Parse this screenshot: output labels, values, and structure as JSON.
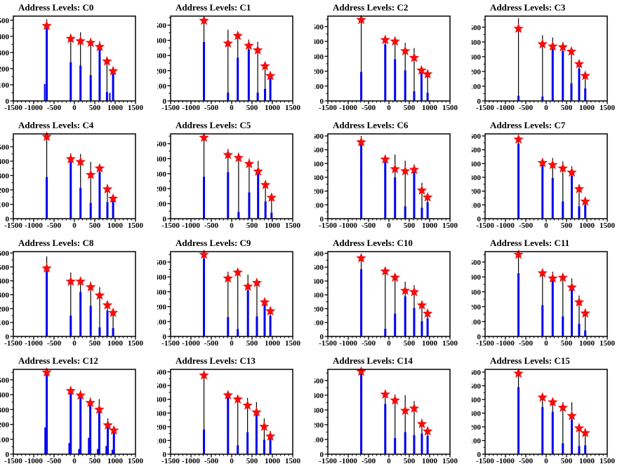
{
  "chart_data": {
    "type": "bar",
    "subtype": "multi-panel-histogram-with-star-markers",
    "layout": {
      "rows": 4,
      "cols": 4,
      "grid_on": false,
      "legend": "none"
    },
    "axes": {
      "xlim": [
        -1500,
        1500
      ],
      "xticks": [
        -1500,
        -1000,
        -500,
        0,
        500,
        1000,
        1500
      ],
      "ytick_step": 100,
      "xlabel": "",
      "ylabel": ""
    },
    "colors": {
      "bar": "#0000ee",
      "marker": "#f50d0d",
      "error_line": "#000000",
      "frame": "#000000",
      "text": "#000000",
      "background": "#ffffff"
    },
    "marker_style": "filled-5-point-star",
    "peak_format": "each peak: x = bin center, bar = blue histogram height, line = black error-line top, star = red marker y-value",
    "panels": [
      {
        "title": "Address Levels: C0",
        "ymax": 525,
        "peaks": [
          {
            "x": -680,
            "bar": 465,
            "line": 505,
            "star": 465
          },
          {
            "x": -90,
            "bar": 240,
            "line": 415,
            "star": 385
          },
          {
            "x": 150,
            "bar": 220,
            "line": 425,
            "star": 370
          },
          {
            "x": 400,
            "bar": 160,
            "line": 385,
            "star": 360
          },
          {
            "x": 620,
            "bar": 320,
            "line": 370,
            "star": 335
          },
          {
            "x": 800,
            "bar": 55,
            "line": 265,
            "star": 245
          },
          {
            "x": 950,
            "bar": 185,
            "line": 210,
            "star": 185
          }
        ],
        "subs": [
          {
            "x": -730,
            "bar": 105
          },
          {
            "x": 870,
            "bar": 50
          }
        ]
      },
      {
        "title": "Address Levels: C1",
        "ymax": 560,
        "peaks": [
          {
            "x": -680,
            "bar": 390,
            "line": 555,
            "star": 530
          },
          {
            "x": -90,
            "bar": 55,
            "line": 470,
            "star": 380
          },
          {
            "x": 150,
            "bar": 285,
            "line": 450,
            "star": 430
          },
          {
            "x": 420,
            "bar": 340,
            "line": 405,
            "star": 365
          },
          {
            "x": 640,
            "bar": 55,
            "line": 390,
            "star": 335
          },
          {
            "x": 820,
            "bar": 80,
            "line": 260,
            "star": 230
          },
          {
            "x": 950,
            "bar": 160,
            "line": 195,
            "star": 165
          }
        ],
        "subs": []
      },
      {
        "title": "Address Levels: C2",
        "ymax": 570,
        "peaks": [
          {
            "x": -680,
            "bar": 195,
            "line": 560,
            "star": 545
          },
          {
            "x": -90,
            "bar": 380,
            "line": 430,
            "star": 410
          },
          {
            "x": 150,
            "bar": 280,
            "line": 430,
            "star": 400
          },
          {
            "x": 400,
            "bar": 205,
            "line": 390,
            "star": 335
          },
          {
            "x": 620,
            "bar": 65,
            "line": 355,
            "star": 290
          },
          {
            "x": 800,
            "bar": 195,
            "line": 235,
            "star": 205
          },
          {
            "x": 950,
            "bar": 55,
            "line": 210,
            "star": 180
          }
        ],
        "subs": []
      },
      {
        "title": "Address Levels: C3",
        "ymax": 575,
        "peaks": [
          {
            "x": -680,
            "bar": 35,
            "line": 560,
            "star": 490
          },
          {
            "x": -90,
            "bar": 30,
            "line": 445,
            "star": 385
          },
          {
            "x": 160,
            "bar": 365,
            "line": 430,
            "star": 370
          },
          {
            "x": 410,
            "bar": 340,
            "line": 400,
            "star": 365
          },
          {
            "x": 620,
            "bar": 120,
            "line": 365,
            "star": 335
          },
          {
            "x": 810,
            "bar": 220,
            "line": 280,
            "star": 250
          },
          {
            "x": 960,
            "bar": 85,
            "line": 200,
            "star": 170
          }
        ],
        "subs": []
      },
      {
        "title": "Address Levels: C4",
        "ymax": 590,
        "peaks": [
          {
            "x": -680,
            "bar": 290,
            "line": 580,
            "star": 570
          },
          {
            "x": -90,
            "bar": 395,
            "line": 455,
            "star": 415
          },
          {
            "x": 150,
            "bar": 215,
            "line": 450,
            "star": 395
          },
          {
            "x": 400,
            "bar": 110,
            "line": 395,
            "star": 305
          },
          {
            "x": 620,
            "bar": 325,
            "line": 375,
            "star": 350
          },
          {
            "x": 810,
            "bar": 115,
            "line": 240,
            "star": 205
          },
          {
            "x": 950,
            "bar": 125,
            "line": 165,
            "star": 140
          }
        ],
        "subs": []
      },
      {
        "title": "Address Levels: C5",
        "ymax": 565,
        "peaks": [
          {
            "x": -680,
            "bar": 280,
            "line": 555,
            "star": 540
          },
          {
            "x": -90,
            "bar": 310,
            "line": 465,
            "star": 425
          },
          {
            "x": 170,
            "bar": 45,
            "line": 440,
            "star": 405
          },
          {
            "x": 430,
            "bar": 175,
            "line": 400,
            "star": 365
          },
          {
            "x": 650,
            "bar": 300,
            "line": 385,
            "star": 315
          },
          {
            "x": 830,
            "bar": 115,
            "line": 255,
            "star": 225
          },
          {
            "x": 980,
            "bar": 40,
            "line": 165,
            "star": 140
          }
        ],
        "subs": []
      },
      {
        "title": "Address Levels: C6",
        "ymax": 615,
        "peaks": [
          {
            "x": -680,
            "bar": 545,
            "line": 600,
            "star": 555
          },
          {
            "x": -90,
            "bar": 420,
            "line": 450,
            "star": 430
          },
          {
            "x": 150,
            "bar": 300,
            "line": 465,
            "star": 360
          },
          {
            "x": 400,
            "bar": 90,
            "line": 420,
            "star": 345
          },
          {
            "x": 620,
            "bar": 340,
            "line": 395,
            "star": 355
          },
          {
            "x": 810,
            "bar": 80,
            "line": 260,
            "star": 205
          },
          {
            "x": 950,
            "bar": 120,
            "line": 180,
            "star": 155
          }
        ],
        "subs": []
      },
      {
        "title": "Address Levels: C7",
        "ymax": 615,
        "peaks": [
          {
            "x": -680,
            "bar": 545,
            "line": 600,
            "star": 575
          },
          {
            "x": -90,
            "bar": 415,
            "line": 430,
            "star": 405
          },
          {
            "x": 160,
            "bar": 295,
            "line": 440,
            "star": 390
          },
          {
            "x": 410,
            "bar": 125,
            "line": 415,
            "star": 365
          },
          {
            "x": 630,
            "bar": 310,
            "line": 380,
            "star": 335
          },
          {
            "x": 810,
            "bar": 90,
            "line": 250,
            "star": 215
          },
          {
            "x": 960,
            "bar": 100,
            "line": 155,
            "star": 125
          }
        ],
        "subs": []
      },
      {
        "title": "Address Levels: C8",
        "ymax": 610,
        "peaks": [
          {
            "x": -680,
            "bar": 470,
            "line": 575,
            "star": 490
          },
          {
            "x": -90,
            "bar": 150,
            "line": 460,
            "star": 395
          },
          {
            "x": 150,
            "bar": 320,
            "line": 420,
            "star": 395
          },
          {
            "x": 400,
            "bar": 220,
            "line": 395,
            "star": 355
          },
          {
            "x": 620,
            "bar": 65,
            "line": 355,
            "star": 295
          },
          {
            "x": 810,
            "bar": 185,
            "line": 240,
            "star": 225
          },
          {
            "x": 950,
            "bar": 60,
            "line": 195,
            "star": 170
          }
        ],
        "subs": []
      },
      {
        "title": "Address Levels: C9",
        "ymax": 570,
        "peaks": [
          {
            "x": -680,
            "bar": 525,
            "line": 555,
            "star": 550
          },
          {
            "x": -90,
            "bar": 130,
            "line": 435,
            "star": 390
          },
          {
            "x": 150,
            "bar": 50,
            "line": 445,
            "star": 430
          },
          {
            "x": 400,
            "bar": 310,
            "line": 415,
            "star": 335
          },
          {
            "x": 620,
            "bar": 135,
            "line": 380,
            "star": 360
          },
          {
            "x": 810,
            "bar": 215,
            "line": 255,
            "star": 230
          },
          {
            "x": 950,
            "bar": 140,
            "line": 195,
            "star": 170
          }
        ],
        "subs": []
      },
      {
        "title": "Address Levels: C10",
        "ymax": 612,
        "peaks": [
          {
            "x": -680,
            "bar": 485,
            "line": 580,
            "star": 565
          },
          {
            "x": -90,
            "bar": 55,
            "line": 500,
            "star": 470
          },
          {
            "x": 150,
            "bar": 165,
            "line": 455,
            "star": 425
          },
          {
            "x": 400,
            "bar": 290,
            "line": 395,
            "star": 330
          },
          {
            "x": 620,
            "bar": 205,
            "line": 370,
            "star": 320
          },
          {
            "x": 810,
            "bar": 110,
            "line": 255,
            "star": 225
          },
          {
            "x": 950,
            "bar": 130,
            "line": 185,
            "star": 165
          }
        ],
        "subs": []
      },
      {
        "title": "Address Levels: C11",
        "ymax": 570,
        "peaks": [
          {
            "x": -680,
            "bar": 425,
            "line": 560,
            "star": 550
          },
          {
            "x": -90,
            "bar": 210,
            "line": 445,
            "star": 425
          },
          {
            "x": 160,
            "bar": 385,
            "line": 435,
            "star": 390
          },
          {
            "x": 410,
            "bar": 135,
            "line": 420,
            "star": 395
          },
          {
            "x": 630,
            "bar": 315,
            "line": 390,
            "star": 330
          },
          {
            "x": 810,
            "bar": 85,
            "line": 275,
            "star": 230
          },
          {
            "x": 960,
            "bar": 40,
            "line": 185,
            "star": 155
          }
        ],
        "subs": []
      },
      {
        "title": "Address Levels: C12",
        "ymax": 570,
        "peaks": [
          {
            "x": -680,
            "bar": 550,
            "line": 555,
            "star": 550
          },
          {
            "x": -90,
            "bar": 425,
            "line": 440,
            "star": 425
          },
          {
            "x": 150,
            "bar": 395,
            "line": 430,
            "star": 395
          },
          {
            "x": 390,
            "bar": 345,
            "line": 380,
            "star": 345
          },
          {
            "x": 610,
            "bar": 300,
            "line": 370,
            "star": 300
          },
          {
            "x": 820,
            "bar": 195,
            "line": 240,
            "star": 195
          },
          {
            "x": 970,
            "bar": 160,
            "line": 185,
            "star": 160
          }
        ],
        "subs": [
          {
            "x": -720,
            "bar": 180
          },
          {
            "x": -130,
            "bar": 75
          },
          {
            "x": 110,
            "bar": 35
          },
          {
            "x": 350,
            "bar": 110
          },
          {
            "x": 570,
            "bar": 35
          },
          {
            "x": 780,
            "bar": 55
          },
          {
            "x": 930,
            "bar": 30
          }
        ]
      },
      {
        "title": "Address Levels: C13",
        "ymax": 618,
        "peaks": [
          {
            "x": -680,
            "bar": 180,
            "line": 590,
            "star": 575
          },
          {
            "x": -90,
            "bar": 415,
            "line": 445,
            "star": 430
          },
          {
            "x": 150,
            "bar": 65,
            "line": 415,
            "star": 400
          },
          {
            "x": 390,
            "bar": 160,
            "line": 410,
            "star": 355
          },
          {
            "x": 610,
            "bar": 290,
            "line": 380,
            "star": 305
          },
          {
            "x": 800,
            "bar": 105,
            "line": 260,
            "star": 200
          },
          {
            "x": 950,
            "bar": 115,
            "line": 170,
            "star": 130
          }
        ],
        "subs": []
      },
      {
        "title": "Address Levels: C14",
        "ymax": 575,
        "peaks": [
          {
            "x": -680,
            "bar": 545,
            "line": 560,
            "star": 560
          },
          {
            "x": -90,
            "bar": 340,
            "line": 435,
            "star": 405
          },
          {
            "x": 150,
            "bar": 110,
            "line": 405,
            "star": 365
          },
          {
            "x": 400,
            "bar": 150,
            "line": 400,
            "star": 295
          },
          {
            "x": 620,
            "bar": 130,
            "line": 360,
            "star": 310
          },
          {
            "x": 810,
            "bar": 140,
            "line": 240,
            "star": 205
          },
          {
            "x": 950,
            "bar": 125,
            "line": 185,
            "star": 155
          }
        ],
        "subs": []
      },
      {
        "title": "Address Levels: C15",
        "ymax": 620,
        "peaks": [
          {
            "x": -680,
            "bar": 490,
            "line": 600,
            "star": 590
          },
          {
            "x": -90,
            "bar": 345,
            "line": 430,
            "star": 415
          },
          {
            "x": 160,
            "bar": 310,
            "line": 400,
            "star": 380
          },
          {
            "x": 410,
            "bar": 80,
            "line": 380,
            "star": 340
          },
          {
            "x": 630,
            "bar": 255,
            "line": 380,
            "star": 280
          },
          {
            "x": 810,
            "bar": 60,
            "line": 225,
            "star": 190
          },
          {
            "x": 960,
            "bar": 65,
            "line": 175,
            "star": 155
          }
        ],
        "subs": []
      }
    ]
  }
}
